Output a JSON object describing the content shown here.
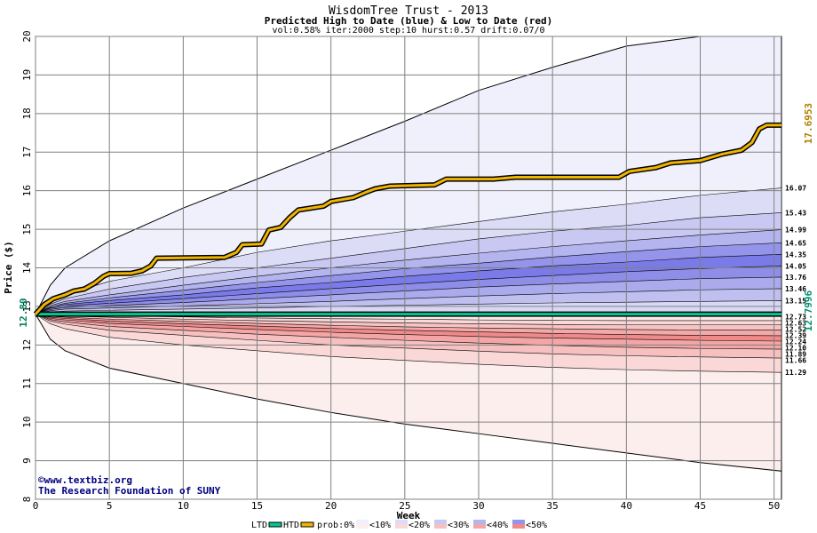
{
  "chart_data": {
    "type": "area",
    "title": "WisdomTree Trust - 2013",
    "subtitle": "Predicted High to Date (blue) &  Low to Date (red)",
    "params": "vol:0.58% iter:2000 step:10 hurst:0.57 drift:0.07/0",
    "xlabel": "Week",
    "ylabel": "Price ($)",
    "xlim": [
      0,
      50.5
    ],
    "ylim": [
      8,
      20
    ],
    "x_ticks": [
      "0",
      "5",
      "10",
      "15",
      "20",
      "25",
      "30",
      "35",
      "40",
      "45",
      "50"
    ],
    "y_ticks": [
      "8",
      "9",
      "10",
      "11",
      "12",
      "13",
      "14",
      "15",
      "16",
      "17",
      "18",
      "19",
      "20"
    ],
    "grid": true,
    "start_price": 12.8,
    "start_label": "12.80",
    "weeks": [
      0,
      1,
      2,
      5,
      10,
      15,
      20,
      25,
      30,
      35,
      40,
      45,
      50.5
    ],
    "high_bands": [
      {
        "name": "<10%",
        "color": "#f0f0fc",
        "values": [
          12.8,
          13.55,
          14.0,
          14.7,
          15.55,
          16.3,
          17.05,
          17.8,
          18.6,
          19.2,
          19.75,
          20.2,
          20.6
        ]
      },
      {
        "name": "<20%",
        "color": "#dcdcf6",
        "values": [
          12.8,
          13.12,
          13.3,
          13.65,
          14.0,
          14.4,
          14.7,
          14.95,
          15.2,
          15.45,
          15.65,
          15.88,
          16.07
        ]
      },
      {
        "name": "<30%",
        "color": "#c8c8f2",
        "values": [
          12.8,
          13.06,
          13.2,
          13.45,
          13.75,
          14.0,
          14.25,
          14.5,
          14.75,
          14.95,
          15.1,
          15.3,
          15.43
        ]
      },
      {
        "name": "<40%",
        "color": "#b4b4ee",
        "values": [
          12.8,
          13.02,
          13.13,
          13.3,
          13.55,
          13.78,
          14.0,
          14.2,
          14.38,
          14.55,
          14.7,
          14.85,
          14.99
        ]
      },
      {
        "name": "<50%",
        "color": "#9494ea",
        "values": [
          12.8,
          12.99,
          13.08,
          13.22,
          13.42,
          13.62,
          13.8,
          13.98,
          14.12,
          14.28,
          14.42,
          14.55,
          14.65
        ]
      },
      {
        "name": "",
        "color": "#7a7ae8",
        "values": [
          12.8,
          12.97,
          13.05,
          13.15,
          13.3,
          13.48,
          13.62,
          13.78,
          13.92,
          14.05,
          14.15,
          14.27,
          14.35
        ]
      },
      {
        "name": "",
        "color": "#8e8ee8",
        "values": [
          12.8,
          12.95,
          13.01,
          13.08,
          13.2,
          13.33,
          13.46,
          13.58,
          13.7,
          13.8,
          13.9,
          13.98,
          14.05
        ]
      },
      {
        "name": "",
        "color": "#aaaaec",
        "values": [
          12.8,
          12.92,
          12.97,
          13.02,
          13.1,
          13.2,
          13.3,
          13.4,
          13.5,
          13.58,
          13.65,
          13.72,
          13.76
        ]
      },
      {
        "name": "",
        "color": "#c0c0f0",
        "values": [
          12.8,
          12.89,
          12.93,
          12.96,
          13.01,
          13.07,
          13.13,
          13.2,
          13.27,
          13.33,
          13.38,
          13.43,
          13.46
        ]
      },
      {
        "name": "",
        "color": "#d8d8f6",
        "values": [
          12.8,
          12.86,
          12.88,
          12.9,
          12.93,
          12.96,
          13.0,
          13.03,
          13.06,
          13.09,
          13.11,
          13.13,
          13.15
        ]
      }
    ],
    "low_bands": [
      {
        "name": "<10%",
        "color": "#fdeeee",
        "values": [
          12.8,
          12.15,
          11.85,
          11.4,
          11.0,
          10.6,
          10.25,
          9.95,
          9.7,
          9.45,
          9.2,
          8.95,
          8.73
        ]
      },
      {
        "name": "<20%",
        "color": "#fad8d8",
        "values": [
          12.8,
          12.55,
          12.42,
          12.2,
          12.0,
          11.85,
          11.7,
          11.6,
          11.5,
          11.42,
          11.36,
          11.32,
          11.29
        ]
      },
      {
        "name": "<30%",
        "color": "#f7c0c0",
        "values": [
          12.8,
          12.62,
          12.54,
          12.38,
          12.25,
          12.12,
          12.0,
          11.92,
          11.84,
          11.77,
          11.72,
          11.69,
          11.66
        ]
      },
      {
        "name": "<40%",
        "color": "#f4a6a6",
        "values": [
          12.8,
          12.66,
          12.6,
          12.48,
          12.38,
          12.28,
          12.2,
          12.12,
          12.05,
          11.99,
          11.94,
          11.91,
          11.89
        ]
      },
      {
        "name": "<50%",
        "color": "#f08a8a",
        "values": [
          12.8,
          12.69,
          12.65,
          12.56,
          12.48,
          12.4,
          12.33,
          12.27,
          12.22,
          12.18,
          12.15,
          12.12,
          12.1
        ]
      },
      {
        "name": "",
        "color": "#f4a8a8",
        "values": [
          12.8,
          12.72,
          12.69,
          12.62,
          12.55,
          12.49,
          12.43,
          12.38,
          12.34,
          12.3,
          12.27,
          12.25,
          12.24
        ]
      },
      {
        "name": "",
        "color": "#f7c4c4",
        "values": [
          12.8,
          12.75,
          12.72,
          12.67,
          12.61,
          12.56,
          12.51,
          12.47,
          12.44,
          12.42,
          12.4,
          12.39,
          12.39
        ]
      },
      {
        "name": "",
        "color": "#fad8d8",
        "values": [
          12.8,
          12.77,
          12.75,
          12.72,
          12.67,
          12.63,
          12.6,
          12.57,
          12.55,
          12.53,
          12.52,
          12.52,
          12.52
        ]
      },
      {
        "name": "",
        "color": "#fde8e8",
        "values": [
          12.8,
          12.79,
          12.78,
          12.76,
          12.73,
          12.7,
          12.68,
          12.67,
          12.65,
          12.64,
          12.63,
          12.63,
          12.63
        ]
      }
    ],
    "right_labels": [
      "16.07",
      "15.43",
      "14.99",
      "14.65",
      "14.35",
      "14.05",
      "13.76",
      "13.46",
      "13.15",
      "12.73",
      "12.63",
      "12.52",
      "12.39",
      "12.24",
      "12.10",
      "11.89",
      "11.66",
      "11.29"
    ],
    "gold_path": {
      "label": "17.6953",
      "color": "#f0b400",
      "points": [
        [
          0,
          12.8
        ],
        [
          0.6,
          13.05
        ],
        [
          1.2,
          13.2
        ],
        [
          2.0,
          13.3
        ],
        [
          2.6,
          13.4
        ],
        [
          3.3,
          13.45
        ],
        [
          4.0,
          13.6
        ],
        [
          4.6,
          13.78
        ],
        [
          5.0,
          13.85
        ],
        [
          6.5,
          13.86
        ],
        [
          7.2,
          13.92
        ],
        [
          7.8,
          14.05
        ],
        [
          8.2,
          14.25
        ],
        [
          12.8,
          14.27
        ],
        [
          13.6,
          14.4
        ],
        [
          14.0,
          14.6
        ],
        [
          15.3,
          14.62
        ],
        [
          15.8,
          14.98
        ],
        [
          16.6,
          15.05
        ],
        [
          17.2,
          15.3
        ],
        [
          17.8,
          15.5
        ],
        [
          19.5,
          15.6
        ],
        [
          20.0,
          15.72
        ],
        [
          21.5,
          15.82
        ],
        [
          22.3,
          15.95
        ],
        [
          23.0,
          16.05
        ],
        [
          24.0,
          16.12
        ],
        [
          27.0,
          16.15
        ],
        [
          27.8,
          16.3
        ],
        [
          31.0,
          16.3
        ],
        [
          32.5,
          16.35
        ],
        [
          39.5,
          16.35
        ],
        [
          40.2,
          16.5
        ],
        [
          42.0,
          16.6
        ],
        [
          43.0,
          16.72
        ],
        [
          45.0,
          16.78
        ],
        [
          46.5,
          16.95
        ],
        [
          47.8,
          17.05
        ],
        [
          48.5,
          17.25
        ],
        [
          49.0,
          17.6
        ],
        [
          49.5,
          17.7
        ],
        [
          50.5,
          17.7
        ]
      ]
    },
    "green_line": {
      "label": "12.7996",
      "color": "#00c890",
      "value": 12.8
    }
  },
  "credits": {
    "copyright": "©www.textbiz.org",
    "foundation": "The Research Foundation of SUNY"
  },
  "legend": {
    "ltd": "LTD",
    "htd": "HTD",
    "prob": "prob:0%",
    "items": [
      {
        "label": "<10%",
        "top": "#f0f0fc",
        "bottom": "#fdeeee"
      },
      {
        "label": "<20%",
        "top": "#dcdcf6",
        "bottom": "#fad8d8"
      },
      {
        "label": "<30%",
        "top": "#c8c8f2",
        "bottom": "#f7c0c0"
      },
      {
        "label": "<40%",
        "top": "#b4b4ee",
        "bottom": "#f4a6a6"
      },
      {
        "label": "<50%",
        "top": "#9494ea",
        "bottom": "#f08a8a"
      }
    ],
    "ltd_color": "#00c890",
    "htd_color": "#f0b400"
  }
}
